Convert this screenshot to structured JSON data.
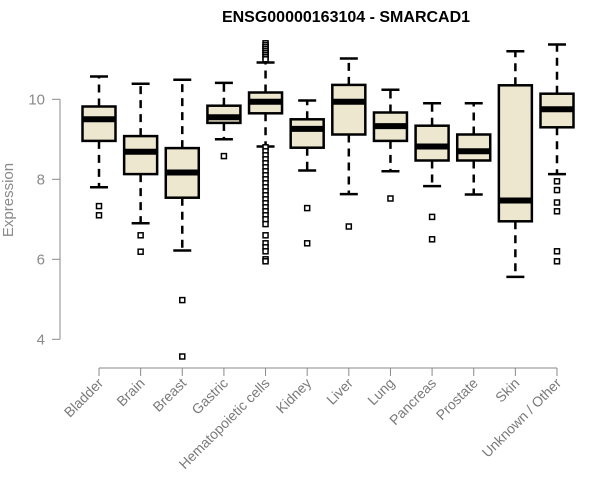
{
  "chart_data": {
    "type": "boxplot",
    "title": "ENSG00000163104 - SMARCAD1",
    "xlabel": "",
    "ylabel": "Expression",
    "ylim": [
      3.3,
      11.6
    ],
    "yticks": [
      4,
      6,
      8,
      10
    ],
    "grid": false,
    "legend": "none",
    "box_fill": "#ede7cf",
    "box_stroke": "#000000",
    "axis_color": "#8a8a8a",
    "categories": [
      "Bladder",
      "Brain",
      "Breast",
      "Gastric",
      "Hematopoietic cells",
      "Kidney",
      "Liver",
      "Lung",
      "Pancreas",
      "Prostate",
      "Skin",
      "Unknown / Other"
    ],
    "boxes": [
      {
        "name": "Bladder",
        "whisker_low": 7.8,
        "q1": 8.96,
        "median": 9.5,
        "q3": 9.82,
        "whisker_high": 10.57,
        "outliers": [
          7.33,
          7.1
        ]
      },
      {
        "name": "Brain",
        "whisker_low": 6.9,
        "q1": 8.13,
        "median": 8.69,
        "q3": 9.08,
        "whisker_high": 10.39,
        "outliers": [
          6.6,
          6.19
        ]
      },
      {
        "name": "Breast",
        "whisker_low": 6.22,
        "q1": 7.54,
        "median": 8.17,
        "q3": 8.78,
        "whisker_high": 10.49,
        "outliers": [
          4.98,
          3.57
        ]
      },
      {
        "name": "Gastric",
        "whisker_low": 9.0,
        "q1": 9.41,
        "median": 9.55,
        "q3": 9.84,
        "whisker_high": 10.41,
        "outliers": [
          8.58
        ]
      },
      {
        "name": "Hematopoietic cells",
        "whisker_low": 8.82,
        "q1": 9.65,
        "median": 9.94,
        "q3": 10.17,
        "whisker_high": 10.92,
        "outliers": [
          11.4,
          11.35,
          11.3,
          11.25,
          11.2,
          11.15,
          11.1,
          11.05,
          11.0,
          8.8,
          8.7,
          8.6,
          8.5,
          8.4,
          8.3,
          8.2,
          8.1,
          8.0,
          7.9,
          7.8,
          7.7,
          7.6,
          7.5,
          7.4,
          7.3,
          7.2,
          7.1,
          7.0,
          6.88,
          6.6,
          6.4,
          6.3,
          6.2,
          6.0,
          5.95
        ]
      },
      {
        "name": "Kidney",
        "whisker_low": 8.22,
        "q1": 8.79,
        "median": 9.26,
        "q3": 9.5,
        "whisker_high": 9.97,
        "outliers": [
          7.28,
          6.4
        ]
      },
      {
        "name": "Liver",
        "whisker_low": 7.63,
        "q1": 9.12,
        "median": 9.94,
        "q3": 10.36,
        "whisker_high": 11.02,
        "outliers": [
          6.82
        ]
      },
      {
        "name": "Lung",
        "whisker_low": 8.2,
        "q1": 8.96,
        "median": 9.33,
        "q3": 9.67,
        "whisker_high": 10.24,
        "outliers": [
          7.52
        ]
      },
      {
        "name": "Pancreas",
        "whisker_low": 7.83,
        "q1": 8.47,
        "median": 8.82,
        "q3": 9.34,
        "whisker_high": 9.9,
        "outliers": [
          7.06,
          6.5
        ]
      },
      {
        "name": "Prostate",
        "whisker_low": 7.62,
        "q1": 8.47,
        "median": 8.7,
        "q3": 9.12,
        "whisker_high": 9.9,
        "outliers": []
      },
      {
        "name": "Skin",
        "whisker_low": 5.56,
        "q1": 6.95,
        "median": 7.47,
        "q3": 10.35,
        "whisker_high": 11.2,
        "outliers": []
      },
      {
        "name": "Unknown / Other",
        "whisker_low": 8.13,
        "q1": 9.3,
        "median": 9.75,
        "q3": 10.14,
        "whisker_high": 11.37,
        "outliers": [
          7.95,
          7.73,
          7.42,
          7.2,
          6.2,
          5.95
        ]
      }
    ]
  }
}
